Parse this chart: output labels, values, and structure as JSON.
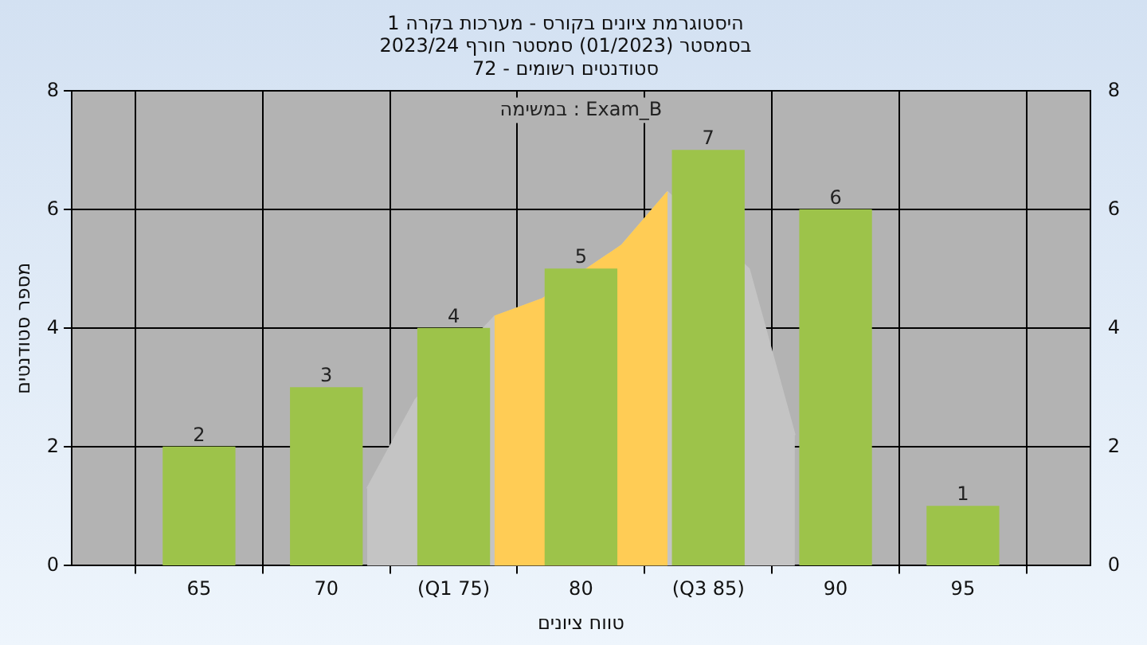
{
  "chart_data": {
    "type": "bar",
    "title": "היסטוגרמת ציונים בקורס - מערכות בקרה 1",
    "subtitle": "בסמסטר (01/2023) סמסטר חורף 2023/24\nסטודנטים רשומים - 72",
    "xlabel": "טווח ציונים",
    "ylabel": "מספר סטודנטים",
    "annotations": [
      "במשימה : Exam_B"
    ],
    "x": [
      65,
      70,
      75,
      80,
      85,
      90,
      95
    ],
    "xlim": [
      60,
      100
    ],
    "xticks": [
      65,
      70,
      {
        "value": 75,
        "label": "(Q1 75)"
      },
      80,
      {
        "value": 85,
        "label": "(Q3 85)"
      },
      90,
      95
    ],
    "ylim": [
      0,
      8
    ],
    "yticks": [
      0,
      2,
      4,
      6,
      8
    ],
    "y2lim": [
      0,
      8
    ],
    "y2ticks": [
      0,
      2,
      4,
      6,
      8
    ],
    "series": [
      {
        "type": "area",
        "color": "#c4c4c4",
        "x": [
          71.6,
          73.5,
          76.6,
          78.5,
          81.6,
          83.4,
          86.6,
          88.4
        ],
        "values": [
          1.3,
          2.8,
          4.2,
          4.5,
          5.4,
          6.3,
          5,
          2.2
        ]
      },
      {
        "type": "area",
        "color": "#ffcc55",
        "x": [
          76.6,
          78.5,
          81.6,
          83.4
        ],
        "values": [
          4.2,
          4.5,
          5.4,
          6.3
        ]
      },
      {
        "color": "#9dc34a",
        "values": [
          2,
          3,
          4,
          5,
          7,
          6,
          1
        ],
        "value_labels": [
          "2",
          "3",
          "4",
          "5",
          "7",
          "6",
          "1"
        ]
      }
    ],
    "grid": true,
    "legend": false
  }
}
